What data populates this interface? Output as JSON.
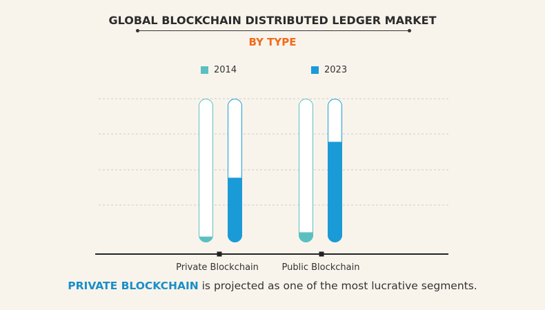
{
  "title": "GLOBAL BLOCKCHAIN DISTRIBUTED LEDGER MARKET",
  "subtitle": "BY TYPE",
  "chart_data": {
    "type": "bar",
    "categories": [
      "Private Blockchain",
      "Public Blockchain"
    ],
    "series": [
      {
        "name": "2014",
        "color": "#5bbfc0",
        "values": [
          0.04,
          0.07
        ]
      },
      {
        "name": "2023",
        "color": "#1a9bd8",
        "values": [
          0.45,
          0.7
        ]
      }
    ],
    "value_unit": "fraction of bar filled",
    "ylim": [
      0,
      1
    ],
    "grid": true,
    "legend": "top"
  },
  "footer": {
    "highlight": "PRIVATE BLOCKCHAIN",
    "text": " is projected as one of the most lucrative segments."
  }
}
